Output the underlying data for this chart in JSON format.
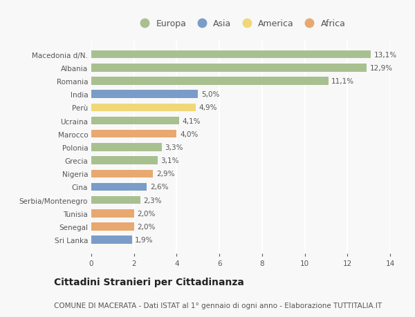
{
  "categories": [
    "Macedonia d/N.",
    "Albania",
    "Romania",
    "India",
    "Perù",
    "Ucraina",
    "Marocco",
    "Polonia",
    "Grecia",
    "Nigeria",
    "Cina",
    "Serbia/Montenegro",
    "Tunisia",
    "Senegal",
    "Sri Lanka"
  ],
  "values": [
    13.1,
    12.9,
    11.1,
    5.0,
    4.9,
    4.1,
    4.0,
    3.3,
    3.1,
    2.9,
    2.6,
    2.3,
    2.0,
    2.0,
    1.9
  ],
  "labels": [
    "13,1%",
    "12,9%",
    "11,1%",
    "5,0%",
    "4,9%",
    "4,1%",
    "4,0%",
    "3,3%",
    "3,1%",
    "2,9%",
    "2,6%",
    "2,3%",
    "2,0%",
    "2,0%",
    "1,9%"
  ],
  "colors": [
    "#a8c090",
    "#a8c090",
    "#a8c090",
    "#7a9cc8",
    "#f0d878",
    "#a8c090",
    "#e8a870",
    "#a8c090",
    "#a8c090",
    "#e8a870",
    "#7a9cc8",
    "#a8c090",
    "#e8a870",
    "#e8a870",
    "#7a9cc8"
  ],
  "legend_labels": [
    "Europa",
    "Asia",
    "America",
    "Africa"
  ],
  "legend_colors": [
    "#a8c090",
    "#7a9cc8",
    "#f0d878",
    "#e8a870"
  ],
  "xlim": [
    0,
    14
  ],
  "xticks": [
    0,
    2,
    4,
    6,
    8,
    10,
    12,
    14
  ],
  "title": "Cittadini Stranieri per Cittadinanza",
  "subtitle": "COMUNE DI MACERATA - Dati ISTAT al 1° gennaio di ogni anno - Elaborazione TUTTITALIA.IT",
  "bg_color": "#f8f8f8",
  "bar_height": 0.6,
  "grid_color": "#ffffff",
  "text_color": "#555555",
  "label_fontsize": 7.5,
  "tick_fontsize": 7.5,
  "legend_fontsize": 9,
  "title_fontsize": 10,
  "subtitle_fontsize": 7.5
}
